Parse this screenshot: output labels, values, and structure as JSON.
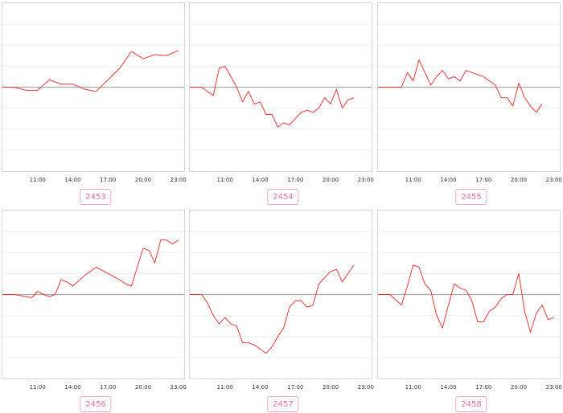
{
  "colors": {
    "line": "#e23a3a",
    "baseline": "#a8a8a8",
    "grid": "#eeeeee",
    "frame": "#d6d6d6",
    "badge": "#e8729a"
  },
  "chart_data": [
    {
      "type": "line",
      "id": "2453",
      "x_ticks": [
        "11:00",
        "14:00",
        "17:00",
        "20:00",
        "23:00"
      ],
      "ylim": [
        -4,
        4
      ],
      "grid": true,
      "series": [
        {
          "x": [
            8,
            9,
            10,
            11,
            12,
            13,
            14,
            15,
            16,
            17,
            18,
            19,
            20,
            21,
            22,
            23
          ],
          "y": [
            0.0,
            0.0,
            -0.15,
            -0.15,
            0.35,
            0.15,
            0.15,
            -0.1,
            -0.2,
            0.35,
            0.9,
            1.7,
            1.35,
            1.55,
            1.5,
            1.75
          ]
        }
      ]
    },
    {
      "type": "line",
      "id": "2454",
      "x_ticks": [
        "11:00",
        "14:00",
        "17:00",
        "20:00",
        "23:00"
      ],
      "ylim": [
        -4,
        4
      ],
      "grid": true,
      "series": [
        {
          "x": [
            8,
            9,
            10,
            10.5,
            11,
            11.5,
            12,
            12.5,
            13,
            13.5,
            14,
            14.5,
            15,
            15.5,
            16,
            16.5,
            17,
            17.5,
            18,
            18.5,
            19,
            19.5,
            20,
            20.5,
            21,
            21.5,
            22
          ],
          "y": [
            0,
            0,
            -0.4,
            0.9,
            1.0,
            0.5,
            0,
            -0.7,
            -0.2,
            -0.8,
            -0.7,
            -1.3,
            -1.3,
            -1.9,
            -1.7,
            -1.8,
            -1.5,
            -1.2,
            -1.1,
            -1.2,
            -1.0,
            -0.5,
            -0.8,
            -0.1,
            -1.0,
            -0.6,
            -0.5
          ]
        }
      ]
    },
    {
      "type": "line",
      "id": "2455",
      "x_ticks": [
        "11:00",
        "14:00",
        "17:00",
        "20:00",
        "23:00"
      ],
      "ylim": [
        -4,
        4
      ],
      "grid": true,
      "series": [
        {
          "x": [
            8,
            9,
            10,
            10.5,
            11,
            11.5,
            12,
            12.5,
            13,
            13.5,
            14,
            14.5,
            15,
            15.5,
            16,
            16.5,
            17,
            17.5,
            18,
            18.5,
            19,
            19.5,
            20,
            20.5,
            21,
            21.5,
            22
          ],
          "y": [
            0,
            0,
            0,
            0.7,
            0.3,
            1.3,
            0.7,
            0.1,
            0.5,
            0.8,
            0.4,
            0.5,
            0.3,
            0.8,
            0.7,
            0.6,
            0.5,
            0.3,
            0.1,
            -0.5,
            -0.5,
            -0.9,
            0.2,
            -0.5,
            -0.9,
            -1.2,
            -0.8
          ]
        }
      ]
    },
    {
      "type": "line",
      "id": "2456",
      "x_ticks": [
        "11:00",
        "14:00",
        "17:00",
        "20:00",
        "23:00"
      ],
      "ylim": [
        -4,
        4
      ],
      "grid": true,
      "series": [
        {
          "x": [
            8,
            9,
            10,
            10.5,
            11,
            11.5,
            12,
            12.5,
            13,
            13.5,
            14,
            15,
            16,
            17,
            18,
            18.5,
            19,
            20,
            20.5,
            21,
            21.5,
            22,
            22.5,
            23
          ],
          "y": [
            0,
            0,
            -0.1,
            -0.15,
            0.15,
            0.0,
            -0.1,
            0.0,
            0.7,
            0.6,
            0.4,
            0.9,
            1.3,
            1.0,
            0.7,
            0.5,
            0.4,
            2.2,
            2.1,
            1.5,
            2.6,
            2.6,
            2.4,
            2.6
          ]
        }
      ]
    },
    {
      "type": "line",
      "id": "2457",
      "x_ticks": [
        "11:00",
        "14:00",
        "17:00",
        "20:00",
        "23:00"
      ],
      "ylim": [
        -4,
        4
      ],
      "grid": true,
      "series": [
        {
          "x": [
            8,
            9,
            9.5,
            10,
            10.5,
            11,
            11.5,
            12,
            12.5,
            13,
            13.5,
            14,
            14.5,
            15,
            15.5,
            16,
            16.5,
            17,
            17.5,
            18,
            18.5,
            19,
            19.5,
            20,
            20.5,
            21,
            21.5,
            22
          ],
          "y": [
            0,
            0,
            -0.4,
            -1.0,
            -1.4,
            -1.1,
            -1.4,
            -1.5,
            -2.3,
            -2.3,
            -2.4,
            -2.6,
            -2.8,
            -2.5,
            -2.0,
            -1.6,
            -0.6,
            -0.3,
            -0.3,
            -0.6,
            -0.5,
            0.5,
            0.8,
            1.1,
            1.2,
            0.6,
            1.0,
            1.4
          ]
        }
      ]
    },
    {
      "type": "line",
      "id": "2458",
      "x_ticks": [
        "11:00",
        "14:00",
        "17:00",
        "20:00",
        "23:00"
      ],
      "ylim": [
        -4,
        4
      ],
      "grid": true,
      "series": [
        {
          "x": [
            8,
            9,
            10,
            10.5,
            11,
            11.5,
            12,
            12.5,
            13,
            13.5,
            14,
            14.5,
            15,
            15.5,
            16,
            16.5,
            17,
            17.5,
            18,
            18.5,
            19,
            19.5,
            20,
            20.5,
            21,
            21.5,
            22,
            22.5,
            23
          ],
          "y": [
            0,
            0,
            -0.5,
            0.4,
            1.4,
            1.3,
            0.5,
            0.2,
            -1.0,
            -1.6,
            -0.5,
            0.5,
            0.3,
            0.2,
            -0.3,
            -1.3,
            -1.3,
            -0.8,
            -0.6,
            -0.2,
            0,
            0,
            1.0,
            -0.8,
            -1.8,
            -0.9,
            -0.5,
            -1.2,
            -1.1
          ]
        }
      ]
    }
  ]
}
